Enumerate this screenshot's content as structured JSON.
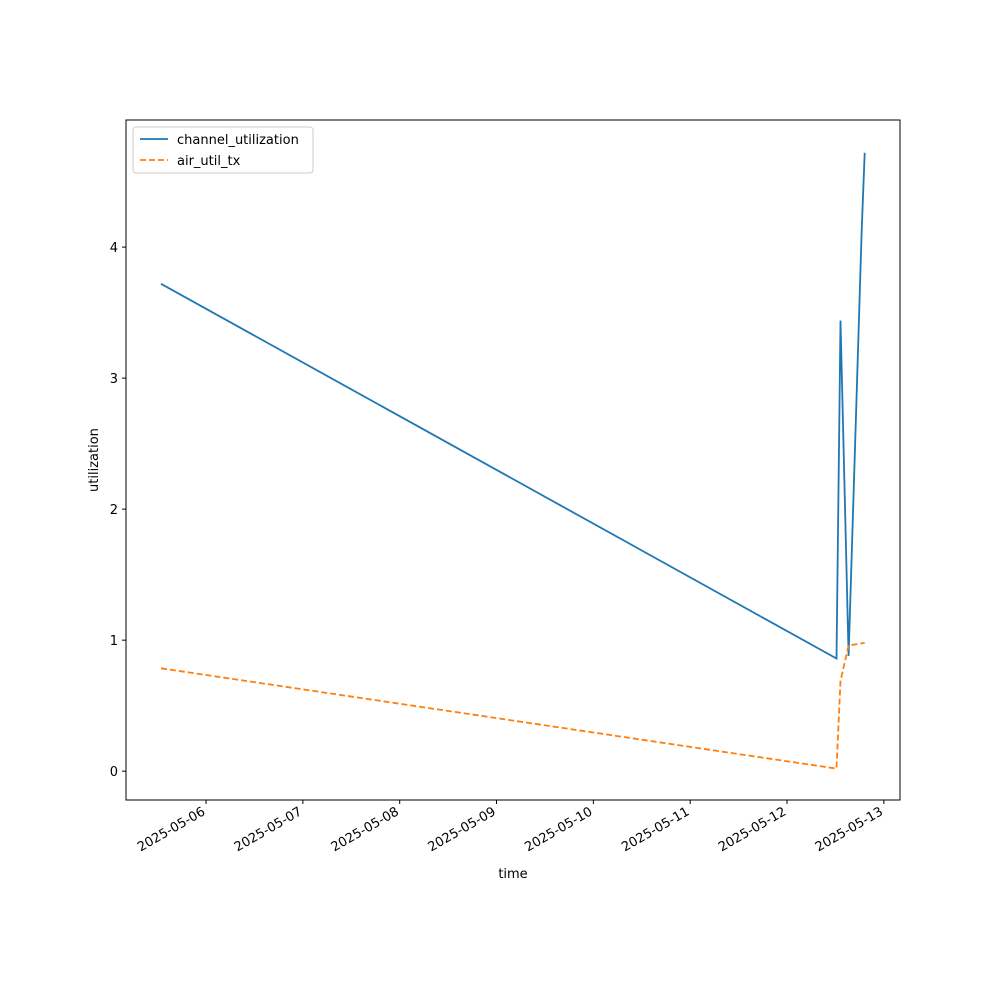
{
  "chart_data": {
    "type": "line",
    "x_label": "time",
    "y_label": "utilization",
    "x": [
      "2025-05-05T12:50",
      "2025-05-12T12:15",
      "2025-05-12T13:15",
      "2025-05-12T15:15",
      "2025-05-12T18:30",
      "2025-05-12T19:15"
    ],
    "series": [
      {
        "name": "channel_utilization",
        "color": "#1f77b4",
        "dash": "solid",
        "values": [
          3.72,
          0.86,
          3.44,
          0.88,
          4.13,
          4.72
        ]
      },
      {
        "name": "air_util_tx",
        "color": "#ff7f0e",
        "dash": "dashed",
        "values": [
          0.785,
          0.02,
          0.69,
          0.96,
          0.975,
          0.98
        ]
      }
    ],
    "xlim": [
      "2025-05-05T04:10",
      "2025-05-13T04:00"
    ],
    "xticks": [
      "2025-05-06",
      "2025-05-07",
      "2025-05-08",
      "2025-05-09",
      "2025-05-10",
      "2025-05-11",
      "2025-05-12",
      "2025-05-13"
    ],
    "ylim": [
      -0.22,
      4.97
    ],
    "yticks": [
      0,
      1,
      2,
      3,
      4
    ],
    "grid": false,
    "legend": "upper left"
  }
}
